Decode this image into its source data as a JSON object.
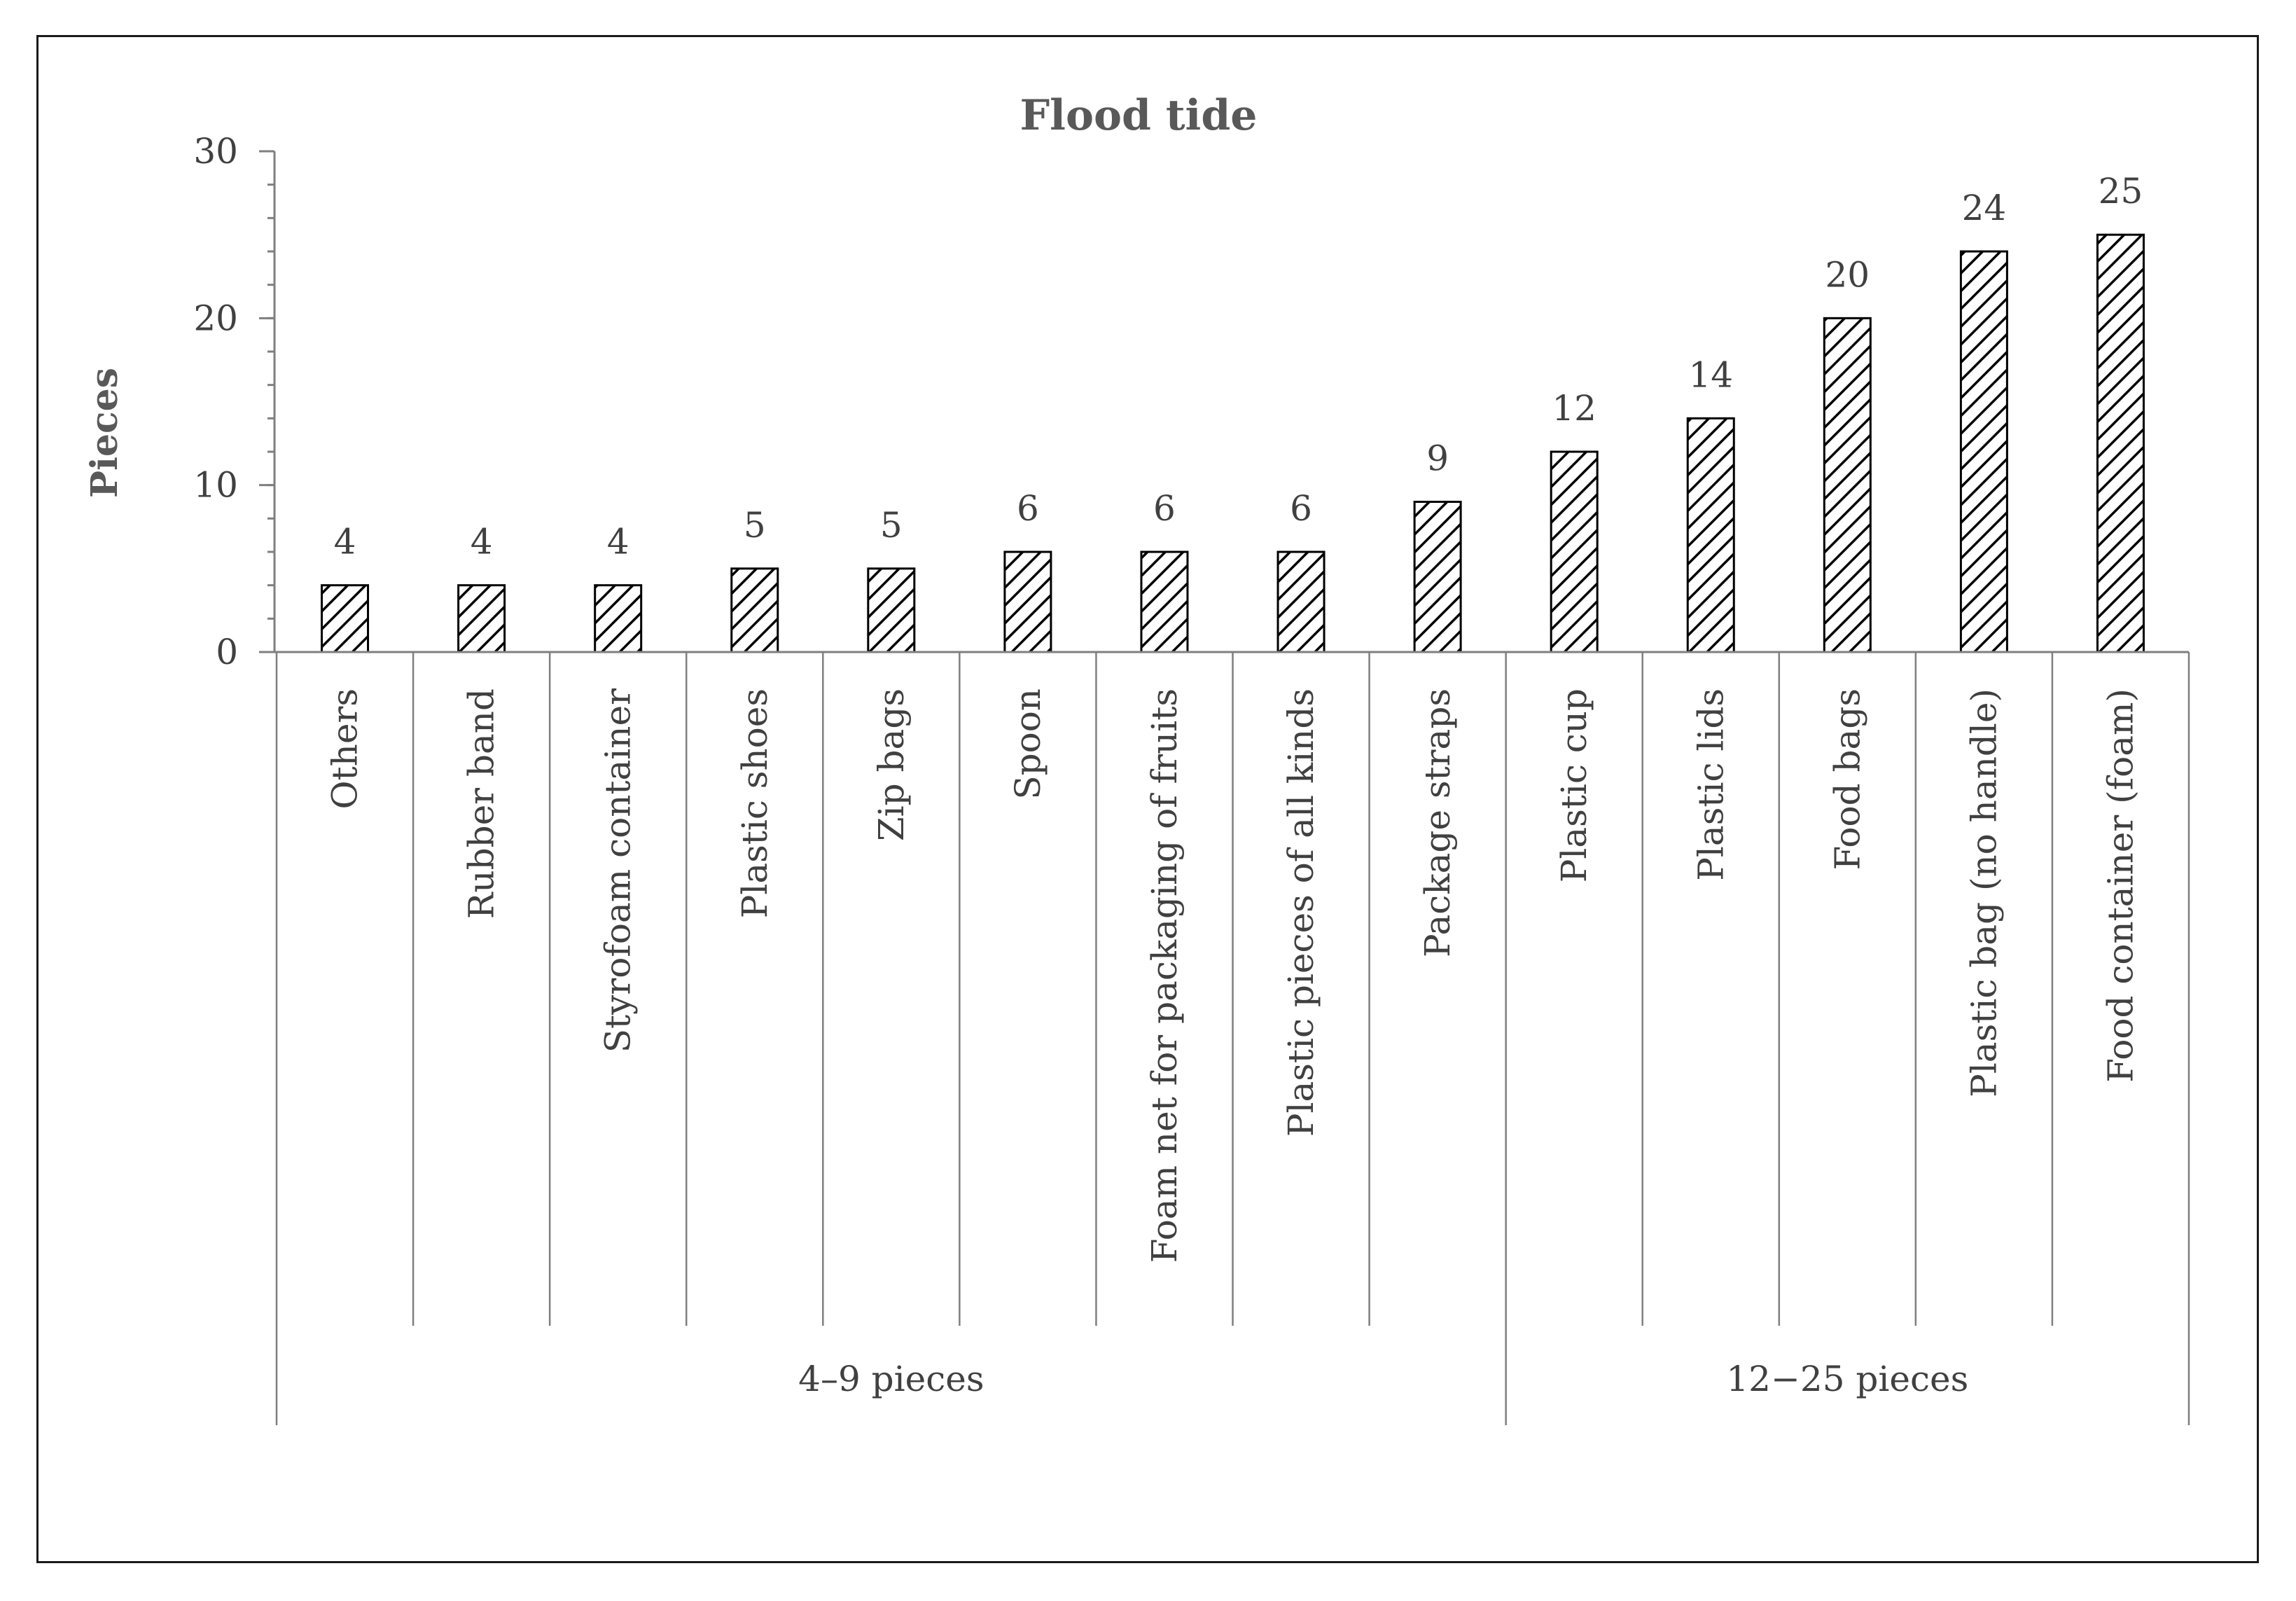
{
  "chart_data": {
    "type": "bar",
    "title": "Flood tide",
    "ylabel": "Pieces",
    "xlabel": "",
    "ylim": [
      0,
      30
    ],
    "yticks": [
      0,
      10,
      20,
      30
    ],
    "grid": false,
    "legend": "none",
    "categories": [
      "Others",
      "Rubber band",
      "Styrofoam container",
      "Plastic shoes",
      "Zip bags",
      "Spoon",
      "Foam net for packaging of fruits",
      "Plastic pieces of all kinds",
      "Package straps",
      "Plastic cup",
      "Plastic lids",
      "Food bags",
      "Plastic bag (no handle)",
      "Food container (foam)"
    ],
    "values": [
      4,
      4,
      4,
      5,
      5,
      6,
      6,
      6,
      9,
      12,
      14,
      20,
      24,
      25
    ],
    "groups": [
      {
        "label": "4–9 pieces",
        "count": 9
      },
      {
        "label": "12−25 pieces",
        "count": 5
      }
    ],
    "bar_style": "diagonal hatch",
    "colors": {
      "bar_stroke": "#000000",
      "axis": "#7f7f7f",
      "text": "#404040",
      "title": "#595959"
    }
  }
}
